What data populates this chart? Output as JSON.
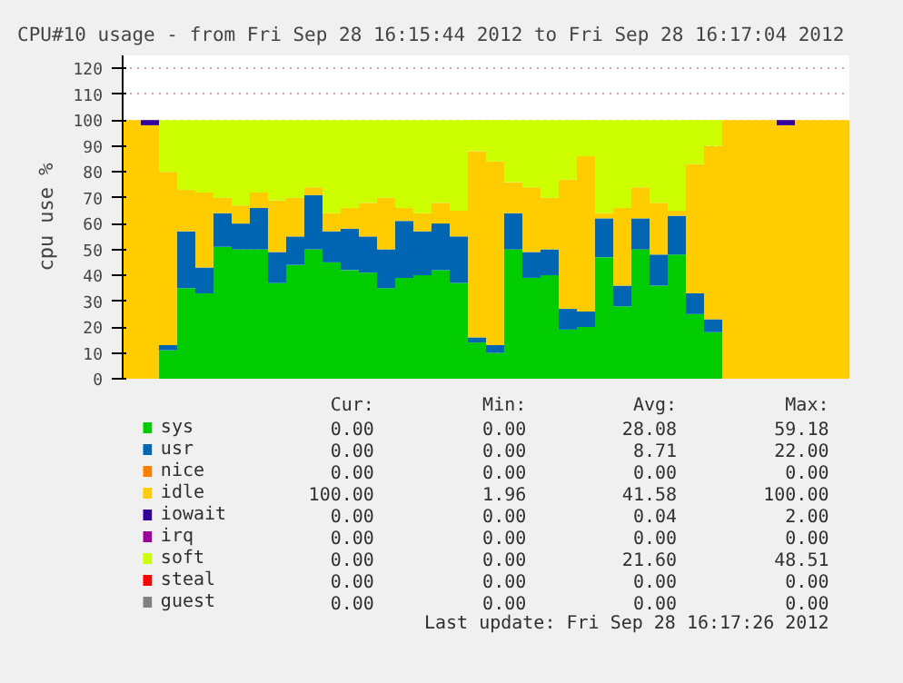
{
  "chart_data": {
    "type": "bar",
    "stacked": true,
    "title": "CPU#10 usage - from Fri Sep 28 16:15:44 2012 to Fri Sep 28 16:17:04 2012",
    "ylabel": "cpu use %",
    "categories": [
      null,
      null,
      null,
      null,
      null,
      null,
      null,
      null,
      null,
      null,
      null,
      null,
      null,
      null,
      null,
      null,
      null,
      null,
      null,
      null,
      null,
      null,
      null,
      null,
      null,
      null,
      null,
      null,
      null,
      null,
      null,
      null,
      null,
      null,
      null,
      null,
      null,
      null,
      null,
      null
    ],
    "ylim": [
      0,
      125
    ],
    "yticks": [
      0,
      10,
      20,
      30,
      40,
      50,
      60,
      70,
      80,
      90,
      100,
      110,
      120
    ],
    "grid": "y",
    "legend": "bottom",
    "series": [
      {
        "name": "sys",
        "color": "#00cc00",
        "values": [
          0,
          0,
          11,
          35,
          33,
          51,
          50,
          50,
          37,
          44,
          50,
          45,
          42,
          41,
          35,
          39,
          40,
          42,
          37,
          14,
          10,
          50,
          39,
          40,
          19,
          20,
          47,
          28,
          50,
          36,
          48,
          25,
          18,
          0,
          0,
          0,
          0,
          0,
          0,
          0
        ]
      },
      {
        "name": "usr",
        "color": "#0066b3",
        "values": [
          0,
          0,
          2,
          22,
          10,
          13,
          10,
          16,
          12,
          11,
          21,
          12,
          16,
          14,
          15,
          22,
          17,
          18,
          18,
          2,
          3,
          14,
          10,
          10,
          8,
          6,
          15,
          8,
          12,
          12,
          15,
          8,
          5,
          0,
          0,
          0,
          0,
          0,
          0,
          0
        ]
      },
      {
        "name": "nice",
        "color": "#ff8000",
        "values": [
          0,
          0,
          0,
          0,
          0,
          0,
          0,
          0,
          0,
          0,
          0,
          0,
          0,
          0,
          0,
          0,
          0,
          0,
          0,
          0,
          0,
          0,
          0,
          0,
          0,
          0,
          0,
          0,
          0,
          0,
          0,
          0,
          0,
          0,
          0,
          0,
          0,
          0,
          0,
          0
        ]
      },
      {
        "name": "idle",
        "color": "#ffcc00",
        "values": [
          100,
          98,
          67,
          16,
          29,
          6,
          7,
          6,
          20,
          15,
          3,
          7,
          8,
          13,
          20,
          5,
          7,
          8,
          10,
          72,
          71,
          12,
          25,
          20,
          50,
          60,
          2,
          30,
          12,
          20,
          2,
          50,
          67,
          100,
          100,
          100,
          98,
          100,
          100,
          100
        ]
      },
      {
        "name": "iowait",
        "color": "#330099",
        "values": [
          0,
          2,
          0,
          0,
          0,
          0,
          0,
          0,
          0,
          0,
          0,
          0,
          0,
          0,
          0,
          0,
          0,
          0,
          0,
          0,
          0,
          0,
          0,
          0,
          0,
          0,
          0,
          0,
          0,
          0,
          0,
          0,
          0,
          0,
          0,
          0,
          2,
          0,
          0,
          0
        ]
      },
      {
        "name": "irq",
        "color": "#990099",
        "values": [
          0,
          0,
          0,
          0,
          0,
          0,
          0,
          0,
          0,
          0,
          0,
          0,
          0,
          0,
          0,
          0,
          0,
          0,
          0,
          0,
          0,
          0,
          0,
          0,
          0,
          0,
          0,
          0,
          0,
          0,
          0,
          0,
          0,
          0,
          0,
          0,
          0,
          0,
          0,
          0
        ]
      },
      {
        "name": "soft",
        "color": "#ccff00",
        "values": [
          0,
          0,
          20,
          27,
          28,
          30,
          33,
          28,
          31,
          30,
          26,
          36,
          34,
          32,
          30,
          34,
          36,
          32,
          35,
          12,
          16,
          24,
          26,
          30,
          23,
          14,
          36,
          34,
          26,
          32,
          35,
          17,
          10,
          0,
          0,
          0,
          0,
          0,
          0,
          0
        ]
      },
      {
        "name": "steal",
        "color": "#ff0000",
        "values": [
          0,
          0,
          0,
          0,
          0,
          0,
          0,
          0,
          0,
          0,
          0,
          0,
          0,
          0,
          0,
          0,
          0,
          0,
          0,
          0,
          0,
          0,
          0,
          0,
          0,
          0,
          0,
          0,
          0,
          0,
          0,
          0,
          0,
          0,
          0,
          0,
          0,
          0,
          0,
          0
        ]
      },
      {
        "name": "guest",
        "color": "#808080",
        "values": [
          0,
          0,
          0,
          0,
          0,
          0,
          0,
          0,
          0,
          0,
          0,
          0,
          0,
          0,
          0,
          0,
          0,
          0,
          0,
          0,
          0,
          0,
          0,
          0,
          0,
          0,
          0,
          0,
          0,
          0,
          0,
          0,
          0,
          0,
          0,
          0,
          0,
          0,
          0,
          0
        ]
      }
    ],
    "annotations": [
      "Cur:",
      "Min:",
      "Avg:",
      "Max:",
      "0.00",
      "0.00",
      "28.08",
      "59.18",
      "0.00",
      "0.00",
      "8.71",
      "22.00",
      "0.00",
      "0.00",
      "0.00",
      "0.00",
      "100.00",
      "1.96",
      "41.58",
      "100.00",
      "0.00",
      "0.00",
      "0.04",
      "2.00",
      "0.00",
      "0.00",
      "0.00",
      "0.00",
      "0.00",
      "0.00",
      "21.60",
      "48.51",
      "0.00",
      "0.00",
      "0.00",
      "0.00",
      "0.00",
      "0.00",
      "0.00",
      "0.00",
      "Last update: Fri Sep 28 16:17:26 2012"
    ]
  }
}
